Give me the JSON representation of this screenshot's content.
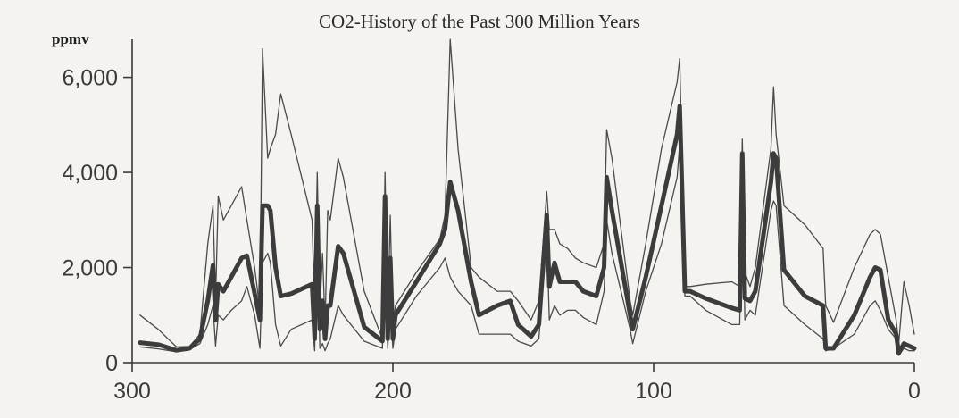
{
  "chart_data": {
    "type": "line",
    "title": "CO2-History of the Past 300 Million Years",
    "ylabel": "ppmv",
    "xlabel": "",
    "xlim": [
      300,
      0
    ],
    "ylim": [
      0,
      6800
    ],
    "x_ticks": [
      "300",
      "200",
      "100",
      "0"
    ],
    "y_ticks": [
      "0",
      "2,000",
      "4,000",
      "6,000"
    ],
    "grid": false,
    "legend": "none",
    "series": [
      {
        "role": "mean",
        "color": "#3c3c3c",
        "points": [
          [
            297,
            420
          ],
          [
            290,
            380
          ],
          [
            283,
            260
          ],
          [
            278,
            300
          ],
          [
            274,
            500
          ],
          [
            271,
            1300
          ],
          [
            269,
            2050
          ],
          [
            268,
            900
          ],
          [
            267,
            1650
          ],
          [
            265,
            1500
          ],
          [
            262,
            1800
          ],
          [
            258,
            2200
          ],
          [
            256,
            2250
          ],
          [
            253,
            1450
          ],
          [
            251,
            900
          ],
          [
            250,
            3300
          ],
          [
            248,
            3300
          ],
          [
            247,
            3200
          ],
          [
            245,
            2000
          ],
          [
            243,
            1400
          ],
          [
            239,
            1450
          ],
          [
            231,
            1650
          ],
          [
            230,
            500
          ],
          [
            229,
            3300
          ],
          [
            228,
            700
          ],
          [
            227,
            1300
          ],
          [
            226,
            500
          ],
          [
            225,
            1200
          ],
          [
            224,
            1200
          ],
          [
            221,
            2450
          ],
          [
            219,
            2300
          ],
          [
            211,
            750
          ],
          [
            204,
            450
          ],
          [
            203,
            3500
          ],
          [
            202,
            500
          ],
          [
            201,
            2200
          ],
          [
            200,
            500
          ],
          [
            199,
            1000
          ],
          [
            191,
            1700
          ],
          [
            182,
            2500
          ],
          [
            180,
            2800
          ],
          [
            178,
            3800
          ],
          [
            175,
            3200
          ],
          [
            170,
            1700
          ],
          [
            167,
            1000
          ],
          [
            160,
            1200
          ],
          [
            155,
            1300
          ],
          [
            152,
            800
          ],
          [
            147,
            550
          ],
          [
            144,
            800
          ],
          [
            141,
            3100
          ],
          [
            140,
            1600
          ],
          [
            138,
            2100
          ],
          [
            136,
            1700
          ],
          [
            133,
            1700
          ],
          [
            130,
            1700
          ],
          [
            127,
            1500
          ],
          [
            122,
            1400
          ],
          [
            119,
            2000
          ],
          [
            118,
            3900
          ],
          [
            116,
            3200
          ],
          [
            109,
            1000
          ],
          [
            108,
            700
          ],
          [
            103,
            1800
          ],
          [
            97,
            3300
          ],
          [
            91,
            4800
          ],
          [
            90,
            5400
          ],
          [
            88,
            1500
          ],
          [
            86,
            1500
          ],
          [
            80,
            1350
          ],
          [
            70,
            1150
          ],
          [
            67,
            1100
          ],
          [
            66,
            4400
          ],
          [
            65,
            1350
          ],
          [
            63,
            1300
          ],
          [
            61,
            1500
          ],
          [
            55,
            3800
          ],
          [
            54,
            4400
          ],
          [
            53,
            4300
          ],
          [
            50,
            1950
          ],
          [
            42,
            1400
          ],
          [
            35,
            1200
          ],
          [
            34,
            300
          ],
          [
            31,
            300
          ],
          [
            23,
            1000
          ],
          [
            17,
            1800
          ],
          [
            15,
            2000
          ],
          [
            13,
            1950
          ],
          [
            10,
            900
          ],
          [
            7,
            600
          ],
          [
            6,
            200
          ],
          [
            4,
            400
          ],
          [
            2,
            350
          ],
          [
            0,
            300
          ]
        ]
      },
      {
        "role": "upper",
        "color": "#4a4a4a",
        "points": [
          [
            297,
            1000
          ],
          [
            290,
            700
          ],
          [
            283,
            330
          ],
          [
            278,
            340
          ],
          [
            274,
            600
          ],
          [
            271,
            2500
          ],
          [
            269,
            3300
          ],
          [
            268,
            1300
          ],
          [
            267,
            3500
          ],
          [
            265,
            3000
          ],
          [
            262,
            3300
          ],
          [
            258,
            3700
          ],
          [
            256,
            3000
          ],
          [
            253,
            2000
          ],
          [
            251,
            1100
          ],
          [
            250,
            6600
          ],
          [
            248,
            4300
          ],
          [
            247,
            4500
          ],
          [
            245,
            4800
          ],
          [
            243,
            5650
          ],
          [
            239,
            4800
          ],
          [
            231,
            3000
          ],
          [
            230,
            1000
          ],
          [
            229,
            4000
          ],
          [
            228,
            1100
          ],
          [
            227,
            2300
          ],
          [
            226,
            800
          ],
          [
            225,
            3200
          ],
          [
            224,
            3000
          ],
          [
            221,
            4300
          ],
          [
            219,
            3900
          ],
          [
            211,
            1500
          ],
          [
            204,
            500
          ],
          [
            203,
            4000
          ],
          [
            202,
            900
          ],
          [
            201,
            3100
          ],
          [
            200,
            700
          ],
          [
            199,
            1200
          ],
          [
            191,
            1900
          ],
          [
            182,
            2600
          ],
          [
            180,
            3100
          ],
          [
            178,
            6800
          ],
          [
            175,
            4500
          ],
          [
            170,
            2000
          ],
          [
            167,
            1800
          ],
          [
            160,
            1500
          ],
          [
            155,
            1500
          ],
          [
            152,
            1300
          ],
          [
            147,
            900
          ],
          [
            144,
            1300
          ],
          [
            141,
            3600
          ],
          [
            140,
            2800
          ],
          [
            138,
            2800
          ],
          [
            136,
            2500
          ],
          [
            133,
            2400
          ],
          [
            130,
            2200
          ],
          [
            127,
            2100
          ],
          [
            122,
            2000
          ],
          [
            119,
            2500
          ],
          [
            118,
            4900
          ],
          [
            116,
            4300
          ],
          [
            109,
            1300
          ],
          [
            108,
            1000
          ],
          [
            103,
            2500
          ],
          [
            97,
            4500
          ],
          [
            91,
            5900
          ],
          [
            90,
            6400
          ],
          [
            88,
            1600
          ],
          [
            86,
            1600
          ],
          [
            80,
            1650
          ],
          [
            70,
            1700
          ],
          [
            67,
            1600
          ],
          [
            66,
            4700
          ],
          [
            65,
            1900
          ],
          [
            63,
            1600
          ],
          [
            61,
            2000
          ],
          [
            55,
            4500
          ],
          [
            54,
            5800
          ],
          [
            53,
            4800
          ],
          [
            50,
            3300
          ],
          [
            42,
            2900
          ],
          [
            35,
            2400
          ],
          [
            34,
            1200
          ],
          [
            31,
            850
          ],
          [
            23,
            2000
          ],
          [
            17,
            2700
          ],
          [
            15,
            2800
          ],
          [
            13,
            2700
          ],
          [
            10,
            1800
          ],
          [
            7,
            900
          ],
          [
            6,
            400
          ],
          [
            4,
            1700
          ],
          [
            2,
            1200
          ],
          [
            0,
            600
          ]
        ]
      },
      {
        "role": "lower",
        "color": "#4a4a4a",
        "points": [
          [
            297,
            330
          ],
          [
            290,
            290
          ],
          [
            283,
            230
          ],
          [
            278,
            270
          ],
          [
            274,
            400
          ],
          [
            271,
            800
          ],
          [
            269,
            1200
          ],
          [
            268,
            350
          ],
          [
            267,
            1000
          ],
          [
            265,
            900
          ],
          [
            262,
            1100
          ],
          [
            258,
            1300
          ],
          [
            256,
            1600
          ],
          [
            253,
            1000
          ],
          [
            251,
            300
          ],
          [
            250,
            2100
          ],
          [
            248,
            2300
          ],
          [
            247,
            2100
          ],
          [
            245,
            800
          ],
          [
            243,
            350
          ],
          [
            239,
            700
          ],
          [
            231,
            900
          ],
          [
            230,
            250
          ],
          [
            229,
            2800
          ],
          [
            228,
            300
          ],
          [
            227,
            400
          ],
          [
            226,
            250
          ],
          [
            225,
            400
          ],
          [
            224,
            500
          ],
          [
            221,
            1200
          ],
          [
            219,
            1000
          ],
          [
            211,
            450
          ],
          [
            204,
            300
          ],
          [
            203,
            2700
          ],
          [
            202,
            300
          ],
          [
            201,
            1300
          ],
          [
            200,
            300
          ],
          [
            199,
            700
          ],
          [
            191,
            1400
          ],
          [
            182,
            2000
          ],
          [
            180,
            2200
          ],
          [
            178,
            1800
          ],
          [
            175,
            1500
          ],
          [
            170,
            1200
          ],
          [
            167,
            600
          ],
          [
            160,
            600
          ],
          [
            155,
            600
          ],
          [
            152,
            450
          ],
          [
            147,
            350
          ],
          [
            144,
            500
          ],
          [
            141,
            2700
          ],
          [
            140,
            900
          ],
          [
            138,
            1200
          ],
          [
            136,
            1000
          ],
          [
            133,
            1100
          ],
          [
            130,
            1100
          ],
          [
            127,
            950
          ],
          [
            122,
            800
          ],
          [
            119,
            1500
          ],
          [
            118,
            3000
          ],
          [
            116,
            2300
          ],
          [
            109,
            700
          ],
          [
            108,
            400
          ],
          [
            103,
            1500
          ],
          [
            97,
            2500
          ],
          [
            91,
            3900
          ],
          [
            90,
            4600
          ],
          [
            88,
            1400
          ],
          [
            86,
            1400
          ],
          [
            80,
            1100
          ],
          [
            70,
            800
          ],
          [
            67,
            800
          ],
          [
            66,
            3600
          ],
          [
            65,
            900
          ],
          [
            63,
            1100
          ],
          [
            61,
            1000
          ],
          [
            55,
            3200
          ],
          [
            54,
            3400
          ],
          [
            53,
            3300
          ],
          [
            50,
            1200
          ],
          [
            42,
            800
          ],
          [
            35,
            500
          ],
          [
            34,
            250
          ],
          [
            31,
            300
          ],
          [
            23,
            600
          ],
          [
            17,
            1200
          ],
          [
            15,
            1300
          ],
          [
            13,
            1100
          ],
          [
            10,
            700
          ],
          [
            7,
            500
          ],
          [
            6,
            150
          ],
          [
            4,
            300
          ],
          [
            2,
            250
          ],
          [
            0,
            250
          ]
        ]
      }
    ]
  }
}
